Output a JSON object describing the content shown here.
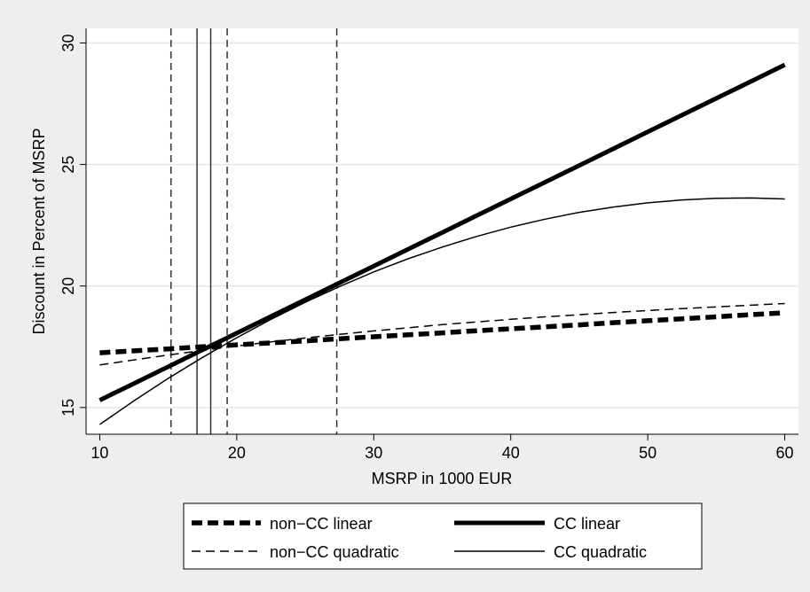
{
  "colors": {
    "background": "#eeeeee",
    "plot_background": "#ffffff",
    "gridline": "#e6e6e6",
    "line": "#000000",
    "vline": "#333333"
  },
  "chart_data": {
    "type": "line",
    "title": "",
    "xlabel": "MSRP in 1000 EUR",
    "ylabel": "Discount in Percent of MSRP",
    "xlim": [
      9,
      61
    ],
    "ylim": [
      13.9,
      30.6
    ],
    "x_ticks": [
      10,
      20,
      30,
      40,
      50,
      60
    ],
    "y_ticks": [
      15,
      20,
      25,
      30
    ],
    "grid": "horizontal",
    "legend_placement": "bottom",
    "x": [
      10,
      12.5,
      15,
      17.5,
      20,
      22.5,
      25,
      27.5,
      30,
      32.5,
      35,
      37.5,
      40,
      42.5,
      45,
      47.5,
      50,
      52.5,
      55,
      57.5,
      60
    ],
    "series": [
      {
        "name": "non−CC linear",
        "style": "thick-dashed",
        "values": [
          17.25,
          17.33,
          17.41,
          17.5,
          17.58,
          17.66,
          17.74,
          17.83,
          17.91,
          17.99,
          18.07,
          18.16,
          18.24,
          18.32,
          18.4,
          18.49,
          18.57,
          18.65,
          18.73,
          18.82,
          18.9
        ]
      },
      {
        "name": "CC linear",
        "style": "thick-solid",
        "values": [
          15.3,
          15.99,
          16.68,
          17.37,
          18.06,
          18.75,
          19.44,
          20.13,
          20.82,
          21.51,
          22.2,
          22.89,
          23.58,
          24.27,
          24.96,
          25.65,
          26.34,
          27.03,
          27.72,
          28.41,
          29.1
        ]
      },
      {
        "name": "non−CC quadratic",
        "style": "thin-dashed",
        "values": [
          16.75,
          16.96,
          17.16,
          17.35,
          17.53,
          17.7,
          17.86,
          18.01,
          18.15,
          18.28,
          18.41,
          18.52,
          18.63,
          18.73,
          18.82,
          18.91,
          18.99,
          19.07,
          19.14,
          19.21,
          19.28
        ]
      },
      {
        "name": "CC quadratic",
        "style": "thin-solid",
        "values": [
          14.3,
          15.28,
          16.2,
          17.06,
          17.87,
          18.63,
          19.33,
          19.98,
          20.58,
          21.12,
          21.6,
          22.04,
          22.42,
          22.75,
          23.03,
          23.25,
          23.42,
          23.54,
          23.61,
          23.62,
          23.58
        ]
      }
    ],
    "vlines": [
      {
        "x": 15.2,
        "style": "dashed"
      },
      {
        "x": 17.1,
        "style": "solid"
      },
      {
        "x": 18.1,
        "style": "solid"
      },
      {
        "x": 19.3,
        "style": "dashed"
      },
      {
        "x": 27.3,
        "style": "dashed"
      }
    ]
  }
}
